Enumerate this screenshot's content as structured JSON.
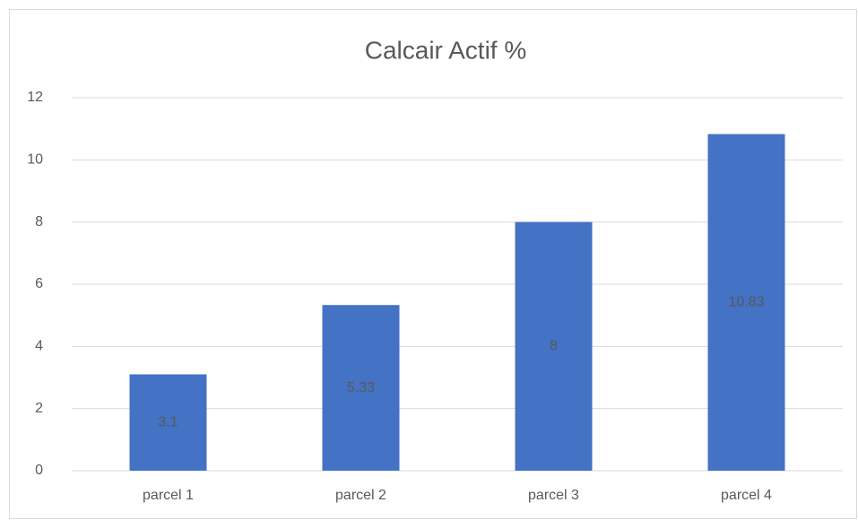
{
  "chart_data": {
    "type": "bar",
    "title": "Calcair Actif %",
    "categories": [
      "parcel 1",
      "parcel 2",
      "parcel 3",
      "parcel 4"
    ],
    "values": [
      3.1,
      5.33,
      8,
      10.83
    ],
    "color": "#4472c4",
    "ylim": [
      0,
      12
    ],
    "yticks": [
      0,
      2,
      4,
      6,
      8,
      10,
      12
    ],
    "grid": true,
    "data_labels": true
  }
}
